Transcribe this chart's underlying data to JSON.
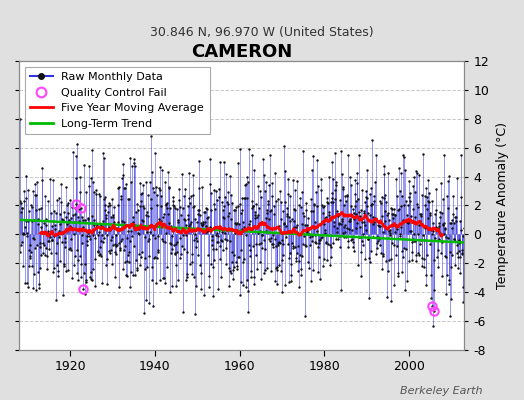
{
  "title": "CAMERON",
  "subtitle": "30.846 N, 96.970 W (United States)",
  "ylabel": "Temperature Anomaly (°C)",
  "footer": "Berkeley Earth",
  "ylim": [
    -8,
    12
  ],
  "yticks": [
    -8,
    -6,
    -4,
    -2,
    0,
    2,
    4,
    6,
    8,
    10,
    12
  ],
  "xlim": [
    1908,
    2013
  ],
  "xticks": [
    1920,
    1940,
    1960,
    1980,
    2000
  ],
  "year_start": 1908,
  "year_end": 2013,
  "seed": 137,
  "background_color": "#e0e0e0",
  "plot_bg_color": "#ffffff",
  "grid_color": "#c8c8c8",
  "raw_line_color": "#3333dd",
  "raw_dot_color": "#111111",
  "ma_color": "#ff0000",
  "trend_color": "#00bb00",
  "qc_color": "#ff44ff",
  "title_fontsize": 13,
  "subtitle_fontsize": 9,
  "tick_fontsize": 9,
  "ylabel_fontsize": 9,
  "legend_fontsize": 8,
  "footer_fontsize": 8
}
